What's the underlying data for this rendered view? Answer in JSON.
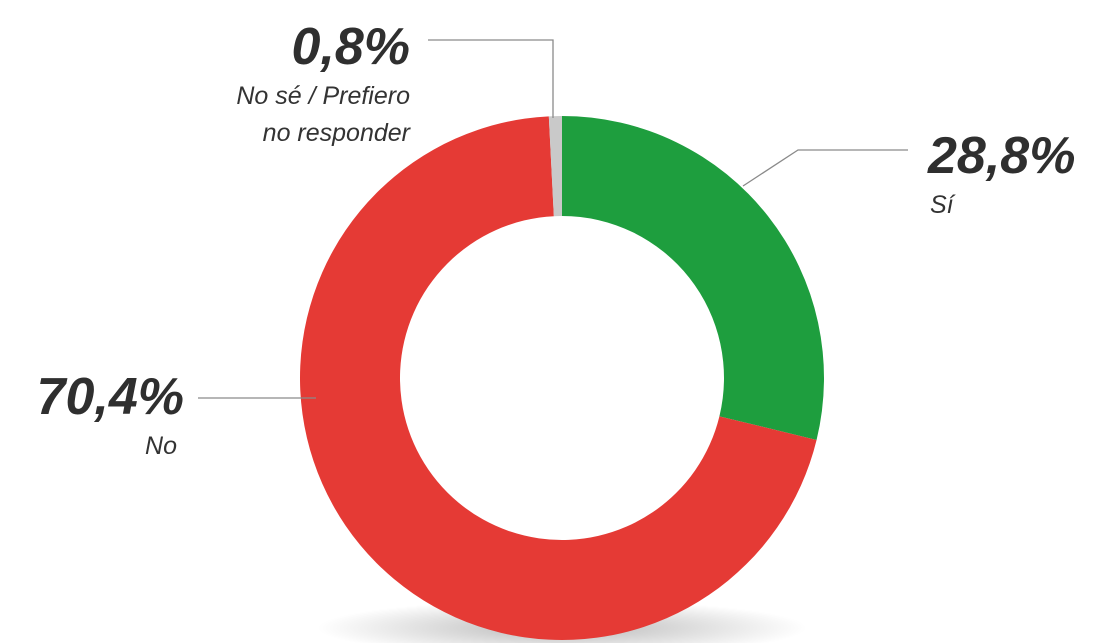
{
  "chart_data": {
    "type": "pie",
    "variant": "donut",
    "slices": [
      {
        "label": "Sí",
        "value": 28.8,
        "value_text": "28,8%",
        "color": "#1e9e3e"
      },
      {
        "label": "No",
        "value": 70.4,
        "value_text": "70,4%",
        "color": "#e53a35"
      },
      {
        "label_lines": [
          "No sé / Prefiero",
          "no responder"
        ],
        "value": 0.8,
        "value_text": "0,8%",
        "color": "#c9c9c9"
      }
    ]
  }
}
